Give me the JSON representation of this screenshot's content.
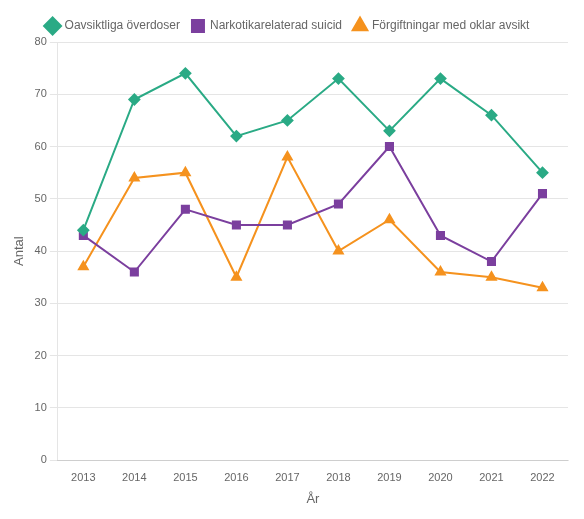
{
  "chart_data": {
    "type": "line",
    "categories": [
      "2013",
      "2014",
      "2015",
      "2016",
      "2017",
      "2018",
      "2019",
      "2020",
      "2021",
      "2022"
    ],
    "series": [
      {
        "name": "Oavsiktliga överdoser",
        "color": "#2aaa85",
        "marker": "diamond",
        "values": [
          44,
          69,
          74,
          62,
          65,
          73,
          63,
          73,
          66,
          55
        ]
      },
      {
        "name": "Narkotikarelaterad suicid",
        "color": "#7b3f9e",
        "marker": "square",
        "values": [
          43,
          36,
          48,
          45,
          45,
          49,
          60,
          43,
          38,
          51
        ]
      },
      {
        "name": "Förgiftningar med oklar avsikt",
        "color": "#f5921e",
        "marker": "triangle",
        "values": [
          37,
          54,
          55,
          35,
          58,
          40,
          46,
          36,
          35,
          33
        ]
      }
    ],
    "x_label": "År",
    "y_label": "Antal",
    "ylim": [
      0,
      80
    ],
    "yticks": [
      0,
      10,
      20,
      30,
      40,
      50,
      60,
      70,
      80
    ],
    "grid": true,
    "legend": "top"
  }
}
